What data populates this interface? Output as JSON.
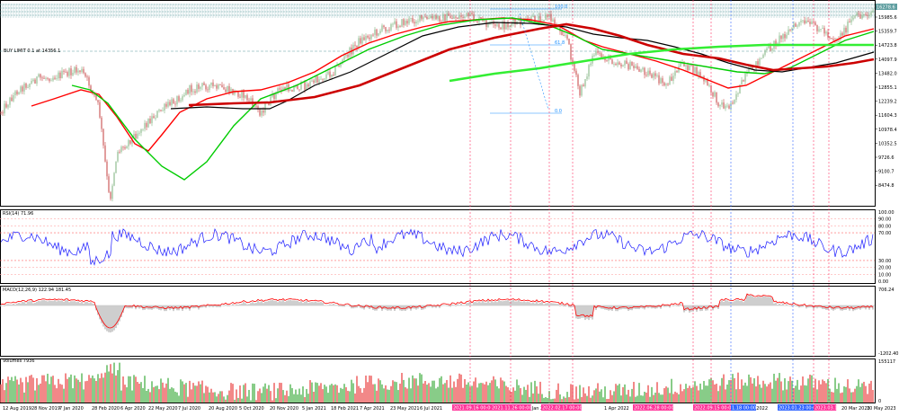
{
  "colors": {
    "background": "#ffffff",
    "candle_up": "#8fbc8f",
    "candle_down": "#cd5c5c",
    "ma_red": "#ff0000",
    "ma_dark_red": "#cc0000",
    "ma_black": "#000000",
    "ma_lime": "#00cc00",
    "ma_green": "#33ee33",
    "rsi_line": "#1a1aff",
    "macd_line": "#ff0000",
    "macd_hist": "#c8c8c8",
    "volume_up": "#6bbf6b",
    "volume_down": "#ee6a6a",
    "level_line": "#5f9ea0",
    "fibo": "#1e90ff",
    "vline": "#ff3366",
    "vline_blue": "#3366ff"
  },
  "main_chart": {
    "order_label": "BUY LIMIT 0.1 at 14356.1",
    "price_box_label": "16278.6",
    "y_labels": [
      "15985.6",
      "15359.7",
      "14723.8",
      "14097.9",
      "13482.0",
      "12855.1",
      "12239.2",
      "11604.3",
      "10978.4",
      "10352.5",
      "9726.6",
      "9100.7",
      "8474.8"
    ],
    "fibo_labels": [
      "100.0",
      "61.8",
      "0.0"
    ],
    "header_text": "NAS100,Daily"
  },
  "rsi_pane": {
    "label": "RSI(14) 71.96",
    "y_labels": [
      "100.00",
      "90.00",
      "80.00",
      "70.00",
      "30.00",
      "20.00",
      "10.00",
      "0.00"
    ]
  },
  "macd_pane": {
    "label": "MACD(12,26,9) 122.94 181.45",
    "y_labels": [
      "706.24",
      "-1202.40"
    ]
  },
  "volume_pane": {
    "label": "Volumes 7936",
    "y_labels": [
      "155117",
      "0"
    ]
  },
  "x_axis": {
    "labels": [
      "12 Aug 2019",
      "28 Nov 2019",
      "7 Jan 2020",
      "28 Feb 2020",
      "6 Apr 2020",
      "22 May 2020",
      "7 Jul 2020",
      "20 Aug 2020",
      "5 Oct 2020",
      "20 Nov 2020",
      "5 Jan 2021",
      "18 Feb 2021",
      "7 Apr 2021",
      "23 May 2021",
      "6 Jul 2021",
      "3 Jan 2022",
      "1 Apr 2022",
      "15 Nov 2022",
      "20 Mar 2023",
      "10 May 2023"
    ],
    "tag_labels": [
      "2021.09.16 00:00",
      "2021.11.26 00:00",
      "2022.02.17 00:00",
      "2022.06.28 00:00",
      "2022.09.15 00:00",
      "1.18 00:00",
      "2023.01.23 00:00",
      "2023.03.1"
    ]
  }
}
